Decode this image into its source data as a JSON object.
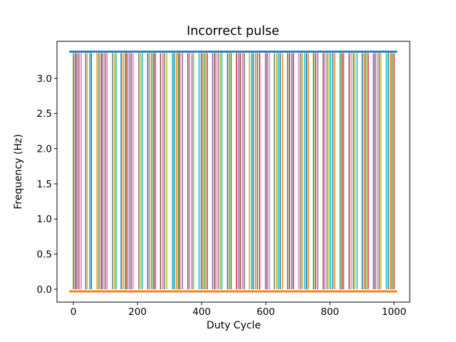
{
  "window": {
    "background": "#ffffff"
  },
  "chart_data": {
    "type": "line",
    "title": "Incorrect pulse",
    "xlabel": "Duty Cycle",
    "ylabel": "Frequency (Hz)",
    "xlim": [
      -50,
      1050
    ],
    "ylim": [
      -0.18,
      3.53
    ],
    "x_ticks": [
      0,
      200,
      400,
      600,
      800,
      1000
    ],
    "y_ticks": [
      0.0,
      0.5,
      1.0,
      1.5,
      2.0,
      2.5,
      3.0
    ],
    "grid": false,
    "legend": "none",
    "palette": [
      "#1f77b4",
      "#ff7f0e",
      "#2ca02c",
      "#d62728",
      "#9467bd",
      "#8c564b",
      "#e377c2",
      "#7f7f7f",
      "#bcbd22",
      "#17becf"
    ],
    "top_line": {
      "y": 3.38,
      "color": "#1f77b4",
      "x_start": -13,
      "x_end": 1010
    },
    "bottom_line": {
      "y": -0.03,
      "color": "#ff7f0e",
      "x_start": -13,
      "x_end": 1010
    },
    "pulses": {
      "y_min": 0.0,
      "y_max": 3.36,
      "color_cycle_start": 2,
      "x_positions": [
        0,
        6,
        11,
        17,
        24,
        38,
        43,
        51,
        56,
        74,
        80,
        87,
        92,
        99,
        105,
        122,
        128,
        133,
        149,
        155,
        162,
        167,
        174,
        180,
        186,
        204,
        210,
        215,
        232,
        238,
        245,
        251,
        256,
        272,
        279,
        284,
        291,
        309,
        314,
        321,
        327,
        332,
        340,
        357,
        362,
        370,
        375,
        392,
        399,
        404,
        410,
        417,
        434,
        440,
        445,
        452,
        458,
        463,
        481,
        487,
        492,
        509,
        516,
        521,
        528,
        533,
        549,
        556,
        561,
        568,
        574,
        581,
        599,
        604,
        611,
        627,
        634,
        639,
        645,
        652,
        668,
        674,
        681,
        686,
        703,
        709,
        714,
        721,
        727,
        732,
        749,
        755,
        762,
        779,
        784,
        791,
        797,
        802,
        809,
        815,
        832,
        838,
        843,
        860,
        866,
        873,
        878,
        885,
        901,
        907,
        912,
        919,
        936,
        941,
        948,
        954,
        959,
        976,
        982,
        989,
        994,
        1000
      ]
    }
  }
}
